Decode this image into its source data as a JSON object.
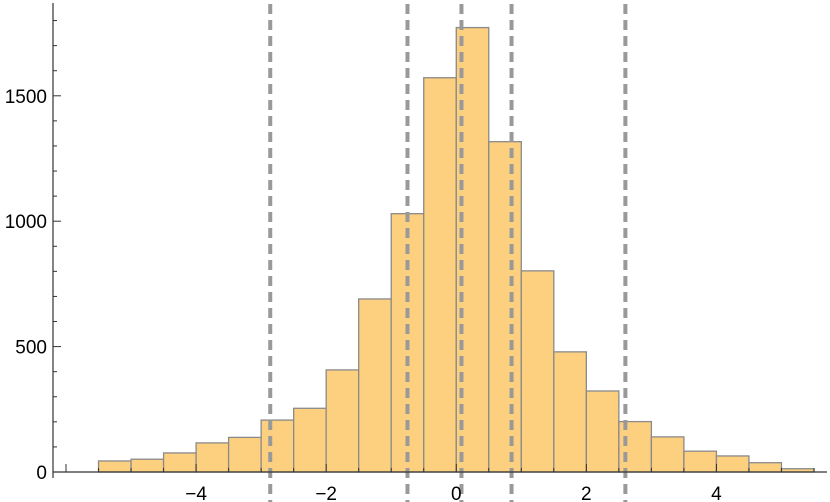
{
  "chart_data": {
    "type": "bar",
    "subtype": "histogram",
    "bin_width": 0.5,
    "bin_edges": [
      -5.5,
      -5,
      -4.5,
      -4,
      -3.5,
      -3,
      -2.5,
      -2,
      -1.5,
      -1,
      -0.5,
      0,
      0.5,
      1,
      1.5,
      2,
      2.5,
      3,
      3.5,
      4,
      4.5,
      5,
      5.5
    ],
    "values": [
      44,
      51,
      76,
      116,
      138,
      207,
      254,
      407,
      690,
      1030,
      1572,
      1772,
      1317,
      802,
      479,
      323,
      201,
      140,
      83,
      64,
      37,
      13
    ],
    "reference_lines_x": [
      -2.86,
      -0.75,
      0.08,
      0.85,
      2.6
    ],
    "xlim": [
      -6.2,
      5.7
    ],
    "ylim": [
      0,
      1870
    ],
    "x_ticks": [
      -4,
      -2,
      0,
      2,
      4
    ],
    "x_tick_labels": [
      "−4",
      "−2",
      "0",
      "2",
      "4"
    ],
    "y_ticks": [
      0,
      500,
      1000,
      1500
    ],
    "y_tick_labels": [
      "0",
      "500",
      "1000",
      "1500"
    ],
    "title": "",
    "xlabel": "",
    "ylabel": "",
    "grid": false,
    "colors": {
      "bar_fill": "#fdd080",
      "bar_edge": "#8a8a8a",
      "reference_line": "#999999",
      "axis": "#333333"
    }
  }
}
